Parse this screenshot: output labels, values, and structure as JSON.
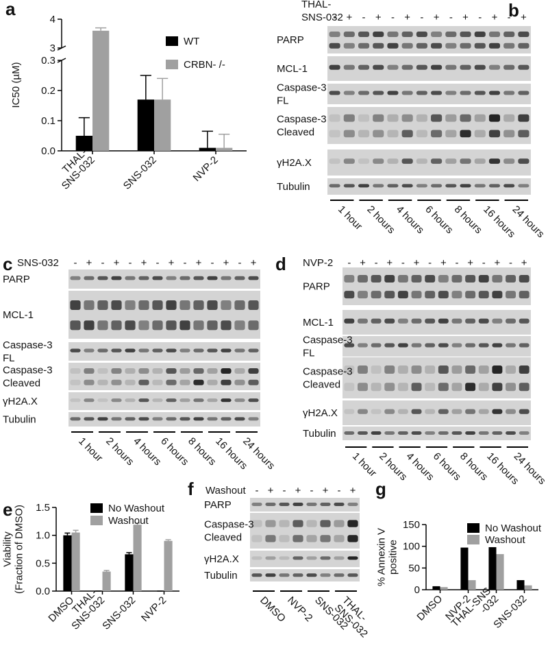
{
  "chart_data": [
    {
      "type": "bar",
      "letter": "a",
      "ylabel": "IC50 (µM)",
      "categories": [
        "THAL-\nSNS-032",
        "SNS-032",
        "NVP-2"
      ],
      "series": [
        {
          "name": "WT",
          "color": "#000000",
          "values": [
            0.05,
            0.17,
            0.01
          ],
          "errors": [
            0.06,
            0.08,
            0.055
          ]
        },
        {
          "name": "CRBN- /-",
          "color": "#a0a0a0",
          "values": [
            3.6,
            0.17,
            0.01
          ],
          "errors": [
            0.1,
            0.07,
            0.045
          ]
        }
      ],
      "ylim": [
        0,
        4
      ],
      "axis_break": [
        0.3,
        3
      ],
      "yticks": [
        {
          "value": 0,
          "label": "0.0"
        },
        0.1,
        0.2,
        0.3,
        3,
        4
      ]
    },
    {
      "type": "bar",
      "letter": "e",
      "ylabel": "Viability\n(Fraction of DMSO)",
      "categories": [
        "DMSO",
        "THAL-\nSNS-032",
        "SNS-032",
        "NVP-2"
      ],
      "series": [
        {
          "name": "No Washout",
          "color": "#000000",
          "values": [
            1.0,
            0.0,
            0.66,
            0.0
          ],
          "errors": [
            0.04,
            0.0,
            0.03,
            0.0
          ]
        },
        {
          "name": "Washout",
          "color": "#a0a0a0",
          "values": [
            1.05,
            0.35,
            1.19,
            0.9
          ],
          "errors": [
            0.04,
            0.02,
            0.03,
            0.02
          ]
        }
      ],
      "ylim": [
        0,
        1.5
      ],
      "yticks": [
        {
          "value": 0,
          "label": "0.0"
        },
        0.5,
        {
          "value": 1,
          "label": "1.0"
        },
        1.5
      ]
    },
    {
      "type": "bar",
      "letter": "g",
      "ylabel": "% Annexin V\npositive",
      "categories": [
        "DMSO",
        "NVP-2",
        "THAL-SNS\n-032",
        "SNS-032"
      ],
      "series": [
        {
          "name": "No Washout",
          "color": "#000000",
          "values": [
            8,
            97,
            98,
            22
          ]
        },
        {
          "name": "Washout",
          "color": "#a0a0a0",
          "values": [
            6,
            22,
            82,
            10
          ]
        }
      ],
      "ylim": [
        0,
        150
      ],
      "yticks": [
        0,
        50,
        100,
        150
      ]
    }
  ],
  "blots": [
    {
      "letter": "b",
      "treatment": "THAL-\nSNS-032",
      "lanes": [
        "-",
        "+",
        "-",
        "+",
        "-",
        "+",
        "-",
        "+",
        "-",
        "+",
        "-",
        "+",
        "-",
        "+"
      ],
      "rows": [
        "PARP",
        "MCL-1",
        "Caspase-3\nFL",
        "Caspase-3\nCleaved",
        "γH2A.X",
        "Tubulin"
      ],
      "groups": [
        "1 hour",
        "2 hours",
        "4 hours",
        "6 hours",
        "8 hours",
        "16 hours",
        "24 hours"
      ]
    },
    {
      "letter": "c",
      "treatment": "SNS-032",
      "lanes": [
        "-",
        "+",
        "-",
        "+",
        "-",
        "+",
        "-",
        "+",
        "-",
        "+",
        "-",
        "+",
        "-",
        "+"
      ],
      "rows": [
        "PARP",
        "MCL-1",
        "Caspase-3\nFL",
        "Caspase-3\nCleaved",
        "γH2A.X",
        "Tubulin"
      ],
      "groups": [
        "1 hour",
        "2 hours",
        "4 hours",
        "6 hours",
        "8 hours",
        "16 hours",
        "24 hours"
      ]
    },
    {
      "letter": "d",
      "treatment": "NVP-2",
      "lanes": [
        "-",
        "+",
        "-",
        "+",
        "-",
        "+",
        "-",
        "+",
        "-",
        "+",
        "-",
        "+",
        "-",
        "+"
      ],
      "rows": [
        "PARP",
        "MCL-1",
        "Caspase-3\nFL",
        "Caspase-3\nCleaved",
        "γH2A.X",
        "Tubulin"
      ],
      "groups": [
        "1 hour",
        "2 hours",
        "4 hours",
        "6 hours",
        "8 hours",
        "16 hours",
        "24 hours"
      ]
    },
    {
      "letter": "f",
      "treatment": "Washout",
      "lanes": [
        "-",
        "+",
        "-",
        "+",
        "-",
        "+",
        "-",
        "+"
      ],
      "rows": [
        "PARP",
        "Caspase-3\nCleaved",
        "γH2A.X",
        "Tubulin"
      ],
      "groups": [
        "DMSO",
        "NVP-2",
        "SNS-032",
        "THAL-\nSNS-032"
      ]
    }
  ]
}
